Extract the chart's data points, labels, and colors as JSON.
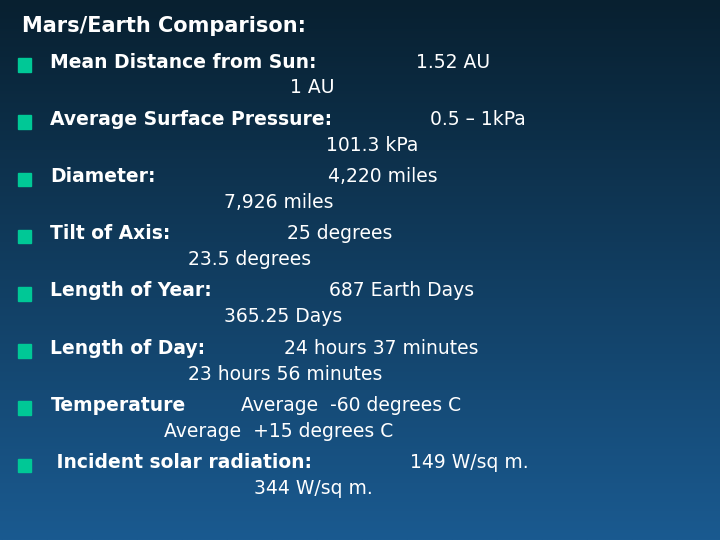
{
  "title": "Mars/Earth Comparison:",
  "bullet_color": "#00C896",
  "text_color": "#FFFFFF",
  "bg_top": "#082030",
  "bg_bottom": "#1A5A90",
  "fontsize": 13.5,
  "title_fontsize": 15,
  "rows": [
    {
      "bold": "Mean Distance from Sun:",
      "mars": "   1.52 AU",
      "earth": "                                        1 AU"
    },
    {
      "bold": "Average Surface Pressure:",
      "mars": "  0.5 – 1kPa",
      "earth": "                                              101.3 kPa"
    },
    {
      "bold": "Diameter:",
      "mars": "                       4,220 miles",
      "earth": "                             7,926 miles"
    },
    {
      "bold": "Tilt of Axis:",
      "mars": "             25 degrees",
      "earth": "                       23.5 degrees"
    },
    {
      "bold": "Length of Year:",
      "mars": "           687 Earth Days",
      "earth": "                             365.25 Days"
    },
    {
      "bold": "Length of Day:",
      "mars": "     24 hours 37 minutes",
      "earth": "                       23 hours 56 minutes"
    },
    {
      "bold": "Temperature",
      "mars": "  Average  -60 degrees C",
      "earth": "                   Average  +15 degrees C"
    },
    {
      "bold": " Incident solar radiation:",
      "mars": "   149 W/sq m.",
      "earth": "                                  344 W/sq m."
    }
  ]
}
